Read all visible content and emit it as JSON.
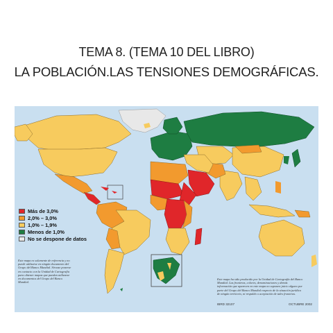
{
  "title_line1": "TEMA 8. (TEMA 10 DEL LIBRO)",
  "title_line2": "LA POBLACIÓN.LAS TENSIONES DEMOGRÁFICAS.",
  "colors": {
    "ocean": "#c9dff0",
    "high": "#e0262a",
    "mid_high": "#f29a2e",
    "mid_low": "#f7cb5e",
    "low": "#1e7d42",
    "nodata": "#e8e8e8"
  },
  "legend": [
    {
      "label": "Más de 3,0%",
      "color": "#e0262a"
    },
    {
      "label": "2,0% – 3,0%",
      "color": "#f29a2e"
    },
    {
      "label": "1,0% – 1,9%",
      "color": "#f7cb5e"
    },
    {
      "label": "Menos de 1,0%",
      "color": "#1e7d42"
    },
    {
      "label": "No se despone de datos",
      "color": "#e8e8e8"
    }
  ],
  "note_left": "Este mapa es solamente de referencia y no puede utilizarse en ningún documento del Grupo del Banco Mundial. Sírvase ponerse en contacto con la Unidad de Cartografía para obtener mapas que puedan utilizarse en documentos del Grupo del Banco Mundial.",
  "note_right": "Este mapa ha sido producido por la Unidad de Cartografía del Banco Mundial. Las fronteras, colores, denominaciones y demás información que aparecen en este mapa no suponen juicio alguno por parte del Grupo del Banco Mundial respecto de la situación jurídica de ningún territorio, ni respaldo o aceptación de tales fronteras.",
  "code_left": "IBRD 32107",
  "code_right": "OCTUBRE 2002"
}
